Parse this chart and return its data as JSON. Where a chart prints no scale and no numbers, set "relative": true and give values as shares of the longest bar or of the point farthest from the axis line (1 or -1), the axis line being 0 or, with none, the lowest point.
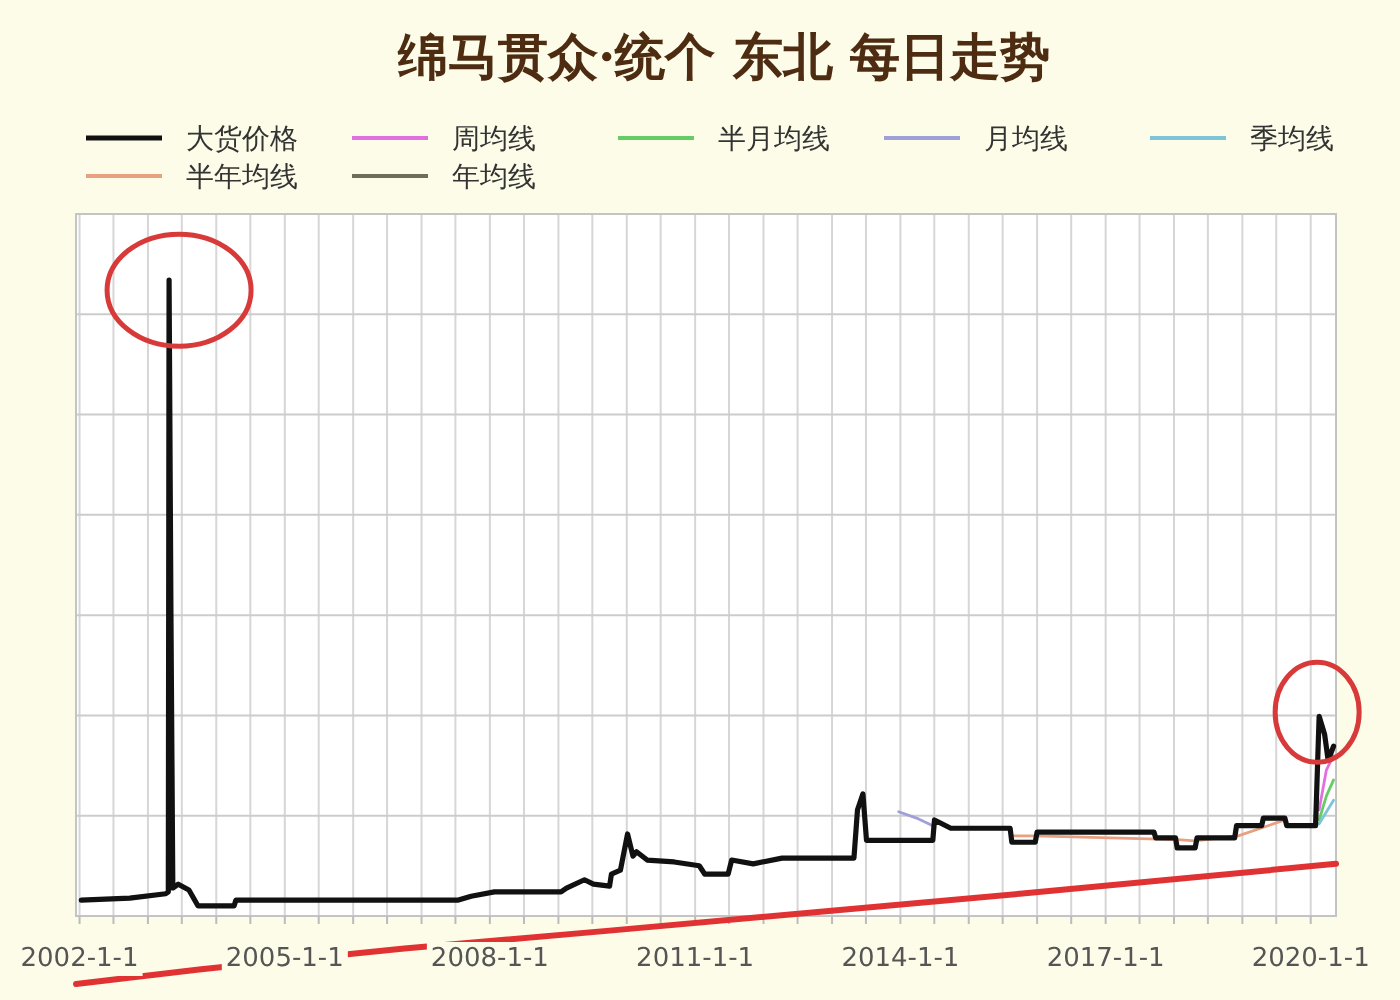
{
  "chart_data": {
    "type": "line",
    "title": "绵马贯众·统个 东北 每日走势",
    "relative": true,
    "grid": true,
    "legend": "top",
    "xlim": [
      "2001-12-13",
      "2020-05-15"
    ],
    "xticks": [
      {
        "value": "2002-01-01",
        "label": "2002-1-1"
      },
      {
        "value": "2002-07-01",
        "label": null
      },
      {
        "value": "2003-01-01",
        "label": null
      },
      {
        "value": "2003-07-01",
        "label": null
      },
      {
        "value": "2004-01-01",
        "label": null
      },
      {
        "value": "2004-07-01",
        "label": null
      },
      {
        "value": "2005-01-01",
        "label": "2005-1-1"
      },
      {
        "value": "2005-07-01",
        "label": null
      },
      {
        "value": "2006-01-01",
        "label": null
      },
      {
        "value": "2006-07-01",
        "label": null
      },
      {
        "value": "2007-01-01",
        "label": null
      },
      {
        "value": "2007-07-01",
        "label": null
      },
      {
        "value": "2008-01-01",
        "label": "2008-1-1"
      },
      {
        "value": "2008-07-01",
        "label": null
      },
      {
        "value": "2009-01-01",
        "label": null
      },
      {
        "value": "2009-07-01",
        "label": null
      },
      {
        "value": "2010-01-01",
        "label": null
      },
      {
        "value": "2010-07-01",
        "label": null
      },
      {
        "value": "2011-01-01",
        "label": "2011-1-1"
      },
      {
        "value": "2011-07-01",
        "label": null
      },
      {
        "value": "2012-01-01",
        "label": null
      },
      {
        "value": "2012-07-01",
        "label": null
      },
      {
        "value": "2013-01-01",
        "label": null
      },
      {
        "value": "2013-07-01",
        "label": null
      },
      {
        "value": "2014-01-01",
        "label": "2014-1-1"
      },
      {
        "value": "2014-07-01",
        "label": null
      },
      {
        "value": "2015-01-01",
        "label": null
      },
      {
        "value": "2015-07-01",
        "label": null
      },
      {
        "value": "2016-01-01",
        "label": null
      },
      {
        "value": "2016-07-01",
        "label": null
      },
      {
        "value": "2017-01-01",
        "label": "2017-1-1"
      },
      {
        "value": "2017-07-01",
        "label": null
      },
      {
        "value": "2018-01-01",
        "label": null
      },
      {
        "value": "2018-07-01",
        "label": null
      },
      {
        "value": "2019-01-01",
        "label": null
      },
      {
        "value": "2019-07-01",
        "label": null
      },
      {
        "value": "2020-01-01",
        "label": "2020-1-1"
      }
    ],
    "series": [
      {
        "name": "大货价格",
        "color": "#111111",
        "x": [
          "2002-01-10",
          "2002-09-26",
          "2003-04-06",
          "2003-04-20",
          "2003-04-24",
          "2003-05-04",
          "2003-05-14",
          "2003-06-12",
          "2003-08-08",
          "2003-09-25",
          "2004-04-05",
          "2004-04-15",
          "2007-07-17",
          "2007-09-23",
          "2008-01-25",
          "2009-01-15",
          "2009-02-13",
          "2009-05-20",
          "2009-07-07",
          "2009-10-01",
          "2009-10-11",
          "2009-11-28",
          "2010-01-05",
          "2010-02-03",
          "2010-02-22",
          "2010-04-20",
          "2010-09-11",
          "2011-01-23",
          "2011-02-21",
          "2011-06-26",
          "2011-07-15",
          "2011-11-07",
          "2012-04-09",
          "2013-04-28",
          "2013-05-17",
          "2013-06-15",
          "2013-07-04",
          "2014-06-23",
          "2014-07-02",
          "2014-09-27",
          "2015-08-10",
          "2015-08-19",
          "2015-12-22",
          "2016-01-01",
          "2017-09-16",
          "2017-09-25",
          "2018-01-09",
          "2018-01-18",
          "2018-04-24",
          "2018-05-04",
          "2018-11-21",
          "2018-12-01",
          "2019-04-14",
          "2019-04-23",
          "2019-08-16",
          "2019-08-26",
          "2020-01-27",
          "2020-02-15",
          "2020-03-15",
          "2020-04-03",
          "2020-05-02"
        ],
        "values": [
          0.025,
          0.028,
          0.035,
          0.038,
          1.0,
          0.475,
          0.044,
          0.05,
          0.041,
          0.016,
          0.016,
          0.025,
          0.025,
          0.031,
          0.038,
          0.038,
          0.044,
          0.057,
          0.05,
          0.047,
          0.066,
          0.072,
          0.129,
          0.094,
          0.101,
          0.088,
          0.085,
          0.079,
          0.066,
          0.066,
          0.088,
          0.082,
          0.091,
          0.091,
          0.167,
          0.192,
          0.119,
          0.119,
          0.151,
          0.138,
          0.138,
          0.116,
          0.116,
          0.132,
          0.132,
          0.123,
          0.123,
          0.107,
          0.107,
          0.123,
          0.123,
          0.142,
          0.142,
          0.154,
          0.154,
          0.142,
          0.142,
          0.314,
          0.286,
          0.245,
          0.267
        ]
      },
      {
        "name": "周均线",
        "color": "#e070e0",
        "x": [
          "2020-02-15",
          "2020-03-25",
          "2020-05-02"
        ],
        "values": [
          0.167,
          0.23,
          0.252
        ]
      },
      {
        "name": "半月均线",
        "color": "#66cc66",
        "x": [
          "2020-02-15",
          "2020-03-25",
          "2020-05-02"
        ],
        "values": [
          0.151,
          0.189,
          0.214
        ]
      },
      {
        "name": "月均线",
        "color": "#a0a0d8",
        "x": [
          "2013-12-23",
          "2014-03-28",
          "2014-06-23"
        ],
        "values": [
          0.164,
          0.154,
          0.142
        ]
      },
      {
        "name": "季均线",
        "color": "#7cc4d6",
        "x": [
          "2020-02-15",
          "2020-05-02"
        ],
        "values": [
          0.145,
          0.182
        ]
      },
      {
        "name": "半年均线",
        "color": "#e8a080",
        "x": [
          "2015-08-19",
          "2015-12-22",
          "2018-01-18",
          "2018-04-24",
          "2018-12-10",
          "2019-08-16"
        ],
        "values": [
          0.126,
          0.126,
          0.12,
          0.118,
          0.126,
          0.151
        ]
      },
      {
        "name": "年均线",
        "color": "#6e6e5a"
      },
      {
        "color": "#e03232",
        "x": [
          "2001-12-13",
          "2003-10-01",
          "2006-10-01",
          "2009-10-01",
          "2012-10-01",
          "2015-10-01",
          "2020-05-15"
        ],
        "values": [
          -0.107,
          -0.084,
          -0.051,
          -0.023,
          0.006,
          0.035,
          0.082
        ]
      }
    ]
  }
}
